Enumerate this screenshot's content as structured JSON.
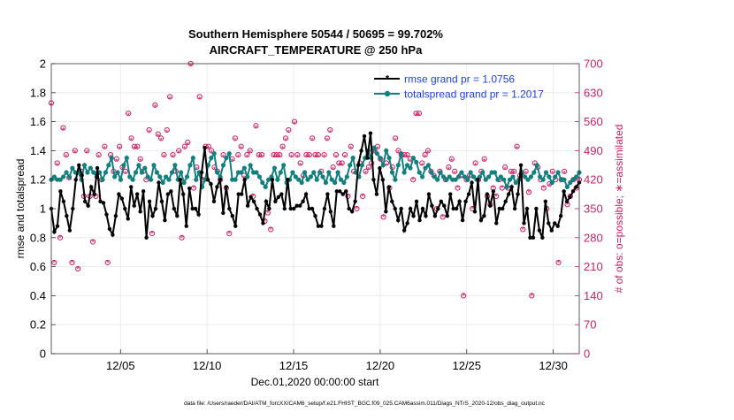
{
  "chart_data": {
    "type": "line",
    "title_line1": "Southern Hemisphere 50544 / 50695 = 99.702%",
    "title_line2": "AIRCRAFT_TEMPERATURE @ 250 hPa",
    "xlabel": "Dec.01,2020 00:00:00 start",
    "ylabel_left": "rmse and totalspread",
    "ylabel_right": "# of obs: o=possible; ∗=assimilated",
    "footer": "data file: /Users/raeder/DAI/ATM_forcXX/CAM6_setup/f.e21.FHIST_BGC.f09_025.CAM6assim.011/Diags_NTrS_2020-12/obs_diag_output.nc",
    "xlim": [
      0.5,
      31.0
    ],
    "ylim_left": [
      0,
      2
    ],
    "ylim_right": [
      0,
      700
    ],
    "x_ticks": [
      {
        "x": 4.5,
        "label": "12/05"
      },
      {
        "x": 9.5,
        "label": "12/10"
      },
      {
        "x": 14.5,
        "label": "12/15"
      },
      {
        "x": 19.5,
        "label": "12/20"
      },
      {
        "x": 24.5,
        "label": "12/25"
      },
      {
        "x": 29.5,
        "label": "12/30"
      }
    ],
    "y_ticks_left": [
      "0",
      "0.2",
      "0.4",
      "0.6",
      "0.8",
      "1",
      "1.2",
      "1.4",
      "1.6",
      "1.8",
      "2"
    ],
    "y_ticks_right": [
      "0",
      "70",
      "140",
      "210",
      "280",
      "350",
      "420",
      "490",
      "560",
      "630",
      "700"
    ],
    "colors": {
      "rmse": "#000000",
      "spread": "#138080",
      "obs": "#cc1f66",
      "legend_text": "#1f3fe0"
    },
    "series": [
      {
        "name": "rmse grand pr = 1.0756",
        "axis": "left",
        "values": [
          1.0,
          0.84,
          0.88,
          1.12,
          1.05,
          0.95,
          0.85,
          1.0,
          1.2,
          1.3,
          1.23,
          1.05,
          1.02,
          1.15,
          1.1,
          1.28,
          1.05,
          1.04,
          0.96,
          0.86,
          0.82,
          0.95,
          1.1,
          1.07,
          1.0,
          0.93,
          1.15,
          1.02,
          1.1,
          0.98,
          1.12,
          0.8,
          1.05,
          0.95,
          1.0,
          1.18,
          1.05,
          0.92,
          1.1,
          1.12,
          1.0,
          0.95,
          1.2,
          1.1,
          0.88,
          1.14,
          1.0,
          1.0,
          0.96,
          1.25,
          1.42,
          1.2,
          1.17,
          1.05,
          1.15,
          1.2,
          0.97,
          1.15,
          1.0,
          0.95,
          0.88,
          1.1,
          1.1,
          1.2,
          1.02,
          1.08,
          1.05,
          1.0,
          0.96,
          0.9,
          1.05,
          1.0,
          1.2,
          1.05,
          1.08,
          1.1,
          1.0,
          1.2,
          1.0,
          1.0,
          1.02,
          1.02,
          1.05,
          1.1,
          1.0,
          1.0,
          0.95,
          0.88,
          0.88,
          1.0,
          1.1,
          0.98,
          0.88,
          1.12,
          1.12,
          1.1,
          1.12,
          1.0,
          0.98,
          1.05,
          1.3,
          1.4,
          1.5,
          1.35,
          1.52,
          1.2,
          1.1,
          1.28,
          1.2,
          0.98,
          1.15,
          1.05,
          1.0,
          0.92,
          1.0,
          0.85,
          0.9,
          1.0,
          0.95,
          1.05,
          0.92,
          1.0,
          0.95,
          1.1,
          1.02,
          0.95,
          1.0,
          1.05,
          1.02,
          0.95,
          1.1,
          1.0,
          1.0,
          1.05,
          0.92,
          1.05,
          1.1,
          1.18,
          0.98,
          1.2,
          0.92,
          0.95,
          1.1,
          1.02,
          1.12,
          0.9,
          1.0,
          1.0,
          1.05,
          1.1,
          1.15,
          1.0,
          1.1,
          1.3,
          0.9,
          1.0,
          0.8,
          0.8,
          1.0,
          0.85,
          0.8,
          1.05,
          0.9,
          0.85,
          0.9,
          0.88,
          0.95,
          1.12,
          1.05,
          1.08,
          1.12,
          1.15,
          1.18
        ]
      },
      {
        "name": "totalspread grand pr = 1.2017",
        "axis": "left",
        "values": [
          1.2,
          1.22,
          1.2,
          1.2,
          1.22,
          1.25,
          1.22,
          1.28,
          1.25,
          1.25,
          1.2,
          1.3,
          1.25,
          1.28,
          1.25,
          1.22,
          1.25,
          1.2,
          1.25,
          1.3,
          1.35,
          1.22,
          1.25,
          1.2,
          1.3,
          1.35,
          1.22,
          1.2,
          1.25,
          1.3,
          1.25,
          1.28,
          1.22,
          1.2,
          1.3,
          1.25,
          1.22,
          1.18,
          1.22,
          1.2,
          1.25,
          1.3,
          1.2,
          1.25,
          1.18,
          1.22,
          1.3,
          1.35,
          1.2,
          1.25,
          1.15,
          1.2,
          1.3,
          1.35,
          1.38,
          1.25,
          1.22,
          1.3,
          1.35,
          1.38,
          1.2,
          1.2,
          1.25,
          1.25,
          1.28,
          1.22,
          1.3,
          1.25,
          1.25,
          1.22,
          1.18,
          1.15,
          1.2,
          1.22,
          1.28,
          1.2,
          1.25,
          1.3,
          1.18,
          1.2,
          1.25,
          1.22,
          1.2,
          1.18,
          1.25,
          1.2,
          1.22,
          1.25,
          1.2,
          1.25,
          1.22,
          1.18,
          1.25,
          1.2,
          1.18,
          1.25,
          1.2,
          1.18,
          1.22,
          1.3,
          1.35,
          1.25,
          1.22,
          1.3,
          1.35,
          1.4,
          1.35,
          1.42,
          1.38,
          1.35,
          1.3,
          1.4,
          1.35,
          1.25,
          1.2,
          1.3,
          1.38,
          1.25,
          1.3,
          1.28,
          1.35,
          1.32,
          1.25,
          1.22,
          1.28,
          1.3,
          1.25,
          1.22,
          1.2,
          1.25,
          1.22,
          1.2,
          1.22,
          1.2,
          1.2,
          1.22,
          1.25,
          1.22,
          1.2,
          1.25,
          1.22,
          1.2,
          1.22,
          1.25,
          1.2,
          1.22,
          1.25,
          1.25,
          1.2,
          1.22,
          1.2,
          1.15,
          1.2,
          1.22,
          1.18,
          1.2,
          1.25,
          1.22,
          1.2,
          1.22,
          1.25,
          1.3,
          1.22,
          1.2,
          1.25,
          1.22,
          1.18,
          1.22,
          1.25,
          1.2,
          1.2,
          1.15,
          1.18,
          1.2,
          1.22,
          1.25
        ]
      },
      {
        "name": "possible",
        "axis": "right",
        "values": [
          605,
          220,
          460,
          280,
          545,
          480,
          425,
          220,
          490,
          205,
          440,
          380,
          490,
          380,
          270,
          380,
          480,
          420,
          500,
          220,
          480,
          440,
          470,
          500,
          450,
          440,
          580,
          520,
          500,
          500,
          470,
          440,
          420,
          540,
          290,
          600,
          530,
          520,
          480,
          540,
          620,
          480,
          440,
          490,
          280,
          500,
          510,
          700,
          400,
          450,
          620,
          420,
          500,
          500,
          490,
          450,
          440,
          420,
          480,
          400,
          290,
          470,
          520,
          480,
          500,
          430,
          480,
          490,
          380,
          550,
          480,
          480,
          320,
          340,
          300,
          480,
          480,
          480,
          500,
          520,
          540,
          480,
          560,
          480,
          460,
          430,
          480,
          480,
          520,
          480,
          480,
          440,
          480,
          520,
          540,
          450,
          480,
          460,
          460,
          480,
          380,
          500,
          440,
          350,
          460,
          380,
          440,
          450,
          460,
          490,
          500,
          470,
          330,
          460,
          400,
          450,
          520,
          490,
          480,
          480,
          480,
          470,
          420,
          580,
          580,
          460,
          480,
          490,
          440,
          430,
          350,
          440,
          330,
          420,
          450,
          470,
          440,
          400,
          430,
          140,
          420,
          430,
          350,
          460,
          420,
          440,
          470,
          380,
          360,
          400,
          380,
          420,
          400,
          450,
          400,
          440,
          440,
          500,
          430,
          300,
          440,
          390,
          140,
          460,
          450,
          420,
          400,
          350,
          410,
          440,
          420,
          220,
          420,
          440,
          360,
          380,
          420,
          400,
          420
        ]
      },
      {
        "name": "assimilated",
        "axis": "right",
        "values": [
          600,
          220,
          455,
          280,
          540,
          475,
          420,
          220,
          485,
          205,
          435,
          380,
          485,
          380,
          270,
          380,
          475,
          420,
          495,
          220,
          475,
          435,
          465,
          495,
          445,
          435,
          575,
          515,
          495,
          495,
          465,
          435,
          420,
          535,
          290,
          595,
          525,
          515,
          475,
          535,
          615,
          475,
          435,
          485,
          280,
          495,
          505,
          695,
          400,
          445,
          615,
          420,
          495,
          495,
          485,
          445,
          435,
          420,
          475,
          400,
          290,
          465,
          515,
          475,
          495,
          425,
          475,
          485,
          380,
          545,
          475,
          475,
          320,
          340,
          300,
          475,
          475,
          475,
          495,
          515,
          535,
          475,
          555,
          475,
          455,
          425,
          475,
          475,
          515,
          475,
          475,
          435,
          475,
          515,
          535,
          445,
          475,
          455,
          455,
          475,
          380,
          495,
          435,
          350,
          455,
          380,
          435,
          445,
          455,
          485,
          495,
          465,
          330,
          455,
          400,
          445,
          515,
          485,
          475,
          475,
          475,
          465,
          420,
          575,
          575,
          455,
          475,
          485,
          435,
          425,
          350,
          435,
          330,
          420,
          445,
          465,
          435,
          400,
          425,
          140,
          420,
          425,
          350,
          455,
          420,
          435,
          465,
          380,
          360,
          400,
          380,
          420,
          400,
          445,
          400,
          435,
          435,
          495,
          425,
          300,
          435,
          390,
          140,
          455,
          445,
          420,
          400,
          350,
          405,
          435,
          420,
          220,
          420,
          435,
          360,
          380,
          420,
          400,
          420
        ]
      }
    ],
    "legend_placement": "top-right",
    "grid": true
  }
}
